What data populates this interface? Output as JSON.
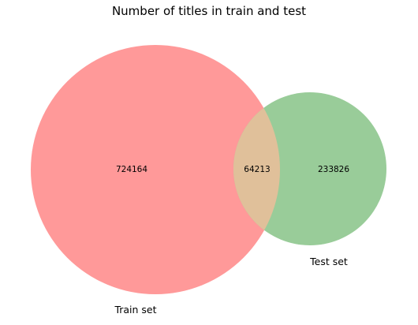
{
  "title": "Number of titles in train and test",
  "chart_data": {
    "type": "venn",
    "title": "Number of titles in train and test",
    "sets": [
      {
        "name": "Train set",
        "only_count": "724164",
        "color": "#ff9999"
      },
      {
        "name": "Test set",
        "only_count": "233826",
        "color": "#99cc99"
      }
    ],
    "intersection": {
      "count": "64213",
      "color": "#e0c09a"
    }
  }
}
